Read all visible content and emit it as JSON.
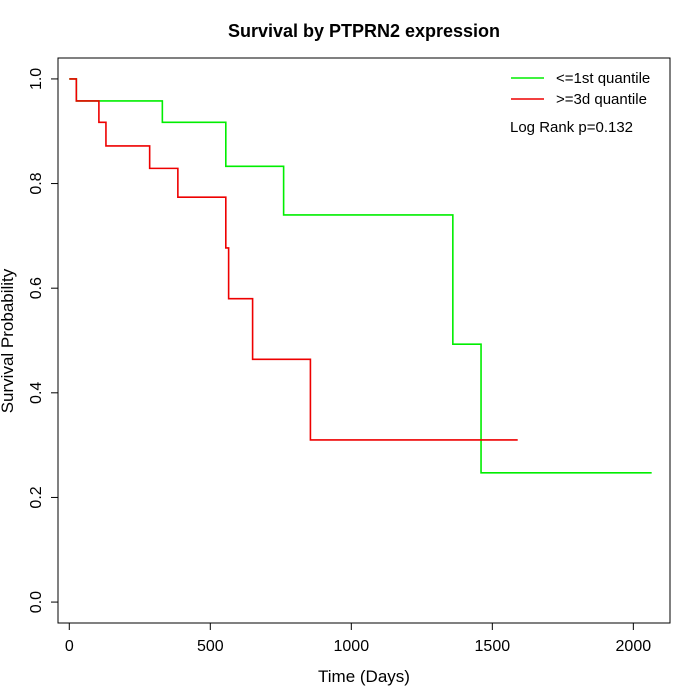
{
  "chart_data": {
    "type": "line",
    "subtype": "kaplan-meier-step",
    "title": "Survival by PTPRN2 expression",
    "xlabel": "Time (Days)",
    "ylabel": "Survival Probability",
    "xlim": [
      -40,
      2130
    ],
    "ylim": [
      -0.04,
      1.04
    ],
    "xticks": [
      0,
      500,
      1000,
      1500,
      2000
    ],
    "yticks": [
      0.0,
      0.2,
      0.4,
      0.6,
      0.8,
      1.0
    ],
    "xtick_labels": [
      "0",
      "500",
      "1000",
      "1500",
      "2000"
    ],
    "ytick_labels": [
      "0.0",
      "0.2",
      "0.4",
      "0.6",
      "0.8",
      "1.0"
    ],
    "grid": false,
    "legend_position": "top-right",
    "annotation": "Log Rank p=0.132",
    "series": [
      {
        "name": "<=1st quantile",
        "color": "#00ee00",
        "steps": [
          [
            0,
            1.0
          ],
          [
            25,
            0.958
          ],
          [
            330,
            0.917
          ],
          [
            555,
            0.833
          ],
          [
            760,
            0.74
          ],
          [
            1360,
            0.493
          ],
          [
            1460,
            0.247
          ],
          [
            2065,
            0.247
          ]
        ]
      },
      {
        "name": ">=3d quantile",
        "color": "#ee0000",
        "steps": [
          [
            0,
            1.0
          ],
          [
            25,
            0.958
          ],
          [
            105,
            0.917
          ],
          [
            130,
            0.872
          ],
          [
            285,
            0.829
          ],
          [
            385,
            0.774
          ],
          [
            555,
            0.677
          ],
          [
            565,
            0.58
          ],
          [
            650,
            0.464
          ],
          [
            855,
            0.31
          ],
          [
            1590,
            0.31
          ]
        ]
      }
    ]
  }
}
